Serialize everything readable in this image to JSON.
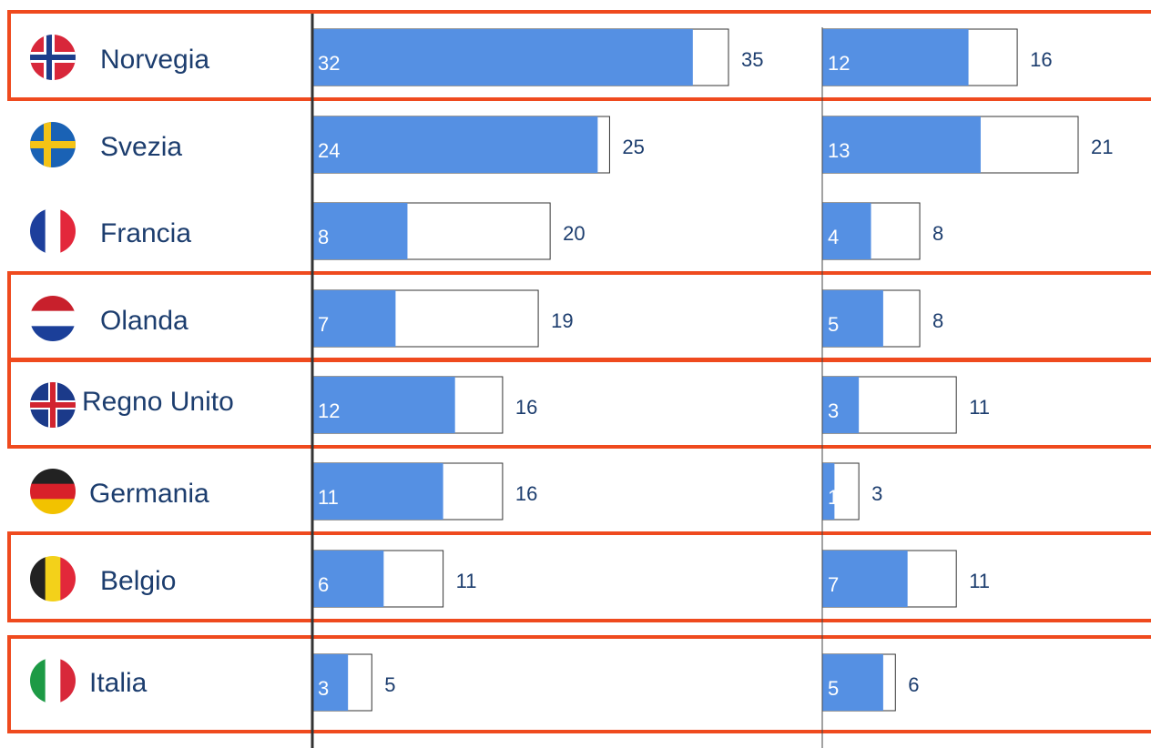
{
  "chart_data": [
    {
      "type": "bar",
      "categories": [
        "Norvegia",
        "Svezia",
        "Francia",
        "Olanda",
        "Regno Unito",
        "Germania",
        "Belgio",
        "Italia"
      ],
      "highlighted": [
        true,
        false,
        false,
        true,
        true,
        false,
        true,
        true
      ],
      "xlim": [
        0,
        35
      ],
      "series": [
        {
          "color": "#ffffff",
          "values": [
            35,
            25,
            20,
            19,
            16,
            16,
            11,
            5
          ]
        },
        {
          "color": "#5590e3",
          "values": [
            32,
            24,
            8,
            7,
            12,
            11,
            6,
            3
          ]
        }
      ]
    },
    {
      "type": "bar",
      "xlim": [
        0,
        21
      ],
      "series": [
        {
          "color": "#ffffff",
          "values": [
            16,
            21,
            8,
            8,
            11,
            3,
            11,
            6
          ]
        },
        {
          "color": "#5590e3",
          "values": [
            12,
            13,
            4,
            5,
            3,
            1,
            7,
            5
          ]
        }
      ]
    }
  ]
}
